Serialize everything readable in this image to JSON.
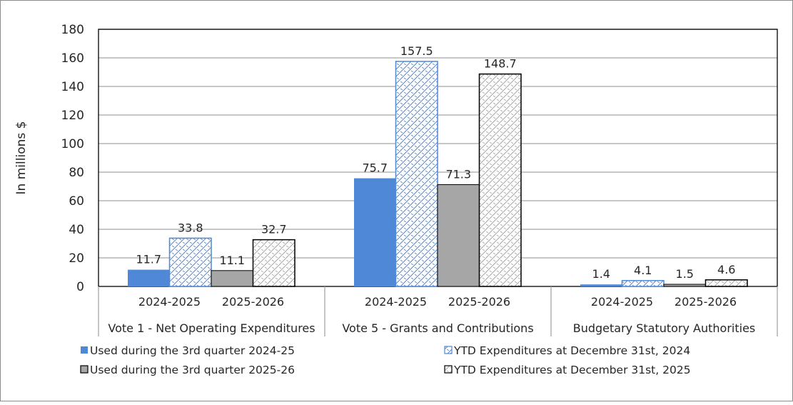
{
  "chart_data": {
    "type": "bar",
    "ylabel": "In millions $",
    "ylim": [
      0,
      180
    ],
    "yticks": [
      0,
      20,
      40,
      60,
      80,
      100,
      120,
      140,
      160,
      180
    ],
    "grid": true,
    "legend_position": "bottom",
    "groups": [
      {
        "label": "Vote 1 - Net Operating Expenditures",
        "subcategories": [
          "2024-2025",
          "2025-2026"
        ]
      },
      {
        "label": "Vote  5 - Grants and Contributions",
        "subcategories": [
          "2024-2025",
          "2025-2026"
        ]
      },
      {
        "label": "Budgetary Statutory Authorities",
        "subcategories": [
          "2024-2025",
          "2025-2026"
        ]
      }
    ],
    "series": [
      {
        "name": "Used during the 3rd quarter 2024-25",
        "values": [
          11.7,
          75.7,
          1.4
        ],
        "color": "#4f88d6",
        "style": "solid"
      },
      {
        "name": "YTD Expenditures at Decembre 31st, 2024",
        "values": [
          33.8,
          157.5,
          4.1
        ],
        "color": "#4f88d6",
        "style": "hatched"
      },
      {
        "name": "Used during the 3rd quarter 2025-26",
        "values": [
          11.1,
          71.3,
          1.5
        ],
        "color": "#a6a6a6",
        "style": "solid"
      },
      {
        "name": "YTD Expenditures at December 31st, 2025",
        "values": [
          32.7,
          148.7,
          4.6
        ],
        "color": "#a6a6a6",
        "style": "hatched"
      }
    ]
  }
}
